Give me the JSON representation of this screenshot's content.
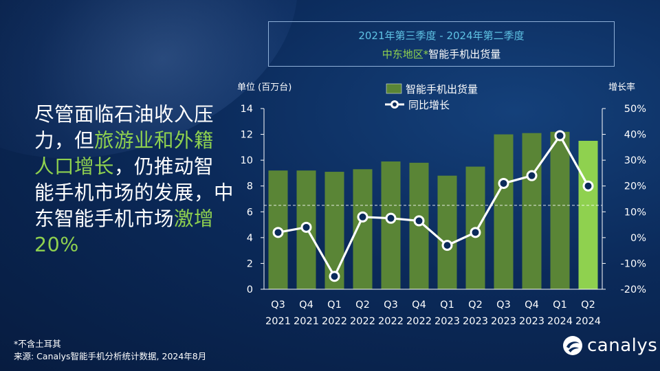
{
  "title": {
    "line1": "2021年第三季度 - 2024年第二季度",
    "line2_region": "中东地区*",
    "line2_rest": "智能手机出货量"
  },
  "headline": {
    "p1": "尽管面临石油收入压力，但",
    "p2": "旅游业和外籍人口增长",
    "p3": "，仍推动智能手机市场的发展，中东智能手机市场",
    "p4": "激增20%"
  },
  "footnote": {
    "line1": "*不含土耳其",
    "line2": "来源: Canalys智能手机分析统计数据, 2024年8月"
  },
  "logo": {
    "text": "canalys",
    "icon": "canalys-swirl-icon"
  },
  "colors": {
    "bar": "#5a8536",
    "bar_highlight": "#8fd14f",
    "accent_text": "#8fd14f",
    "title_line1": "#5fc3e4"
  },
  "chart_data": {
    "type": "bar",
    "categories": [
      "Q3 2021",
      "Q4 2021",
      "Q1 2022",
      "Q2 2022",
      "Q3 2022",
      "Q4 2022",
      "Q1 2023",
      "Q2 2023",
      "Q3 2023",
      "Q4 2023",
      "Q1 2024",
      "Q2 2024"
    ],
    "category_lines": [
      [
        "Q3",
        "2021"
      ],
      [
        "Q4",
        "2021"
      ],
      [
        "Q1",
        "2022"
      ],
      [
        "Q2",
        "2022"
      ],
      [
        "Q3",
        "2022"
      ],
      [
        "Q4",
        "2022"
      ],
      [
        "Q1",
        "2023"
      ],
      [
        "Q2",
        "2023"
      ],
      [
        "Q3",
        "2023"
      ],
      [
        "Q4",
        "2023"
      ],
      [
        "Q1",
        "2024"
      ],
      [
        "Q2",
        "2024"
      ]
    ],
    "series": [
      {
        "name": "智能手机出货量",
        "type": "bar",
        "axis": "left",
        "values": [
          9.2,
          9.2,
          9.1,
          9.3,
          9.9,
          9.8,
          8.8,
          9.5,
          12.0,
          12.1,
          12.2,
          11.5
        ]
      },
      {
        "name": "同比增长",
        "type": "line",
        "axis": "right",
        "values": [
          2,
          4,
          -15,
          8,
          7.5,
          6.5,
          -3,
          2,
          21,
          24,
          39.5,
          20
        ]
      }
    ],
    "highlight_index": 11,
    "ylabel_left": "单位 (百万台)",
    "ylabel_right": "增长率",
    "ylim_left": [
      0,
      14
    ],
    "yticks_left": [
      "0",
      "2",
      "4",
      "6",
      "8",
      "10",
      "12",
      "14"
    ],
    "ylim_right": [
      -20,
      50
    ],
    "yticks_right": [
      "-20%",
      "-10%",
      "0%",
      "10%",
      "20%",
      "30%",
      "40%",
      "50%"
    ],
    "reference_line_left_value": 6.5,
    "legend_position": "top-center",
    "grid": false
  }
}
